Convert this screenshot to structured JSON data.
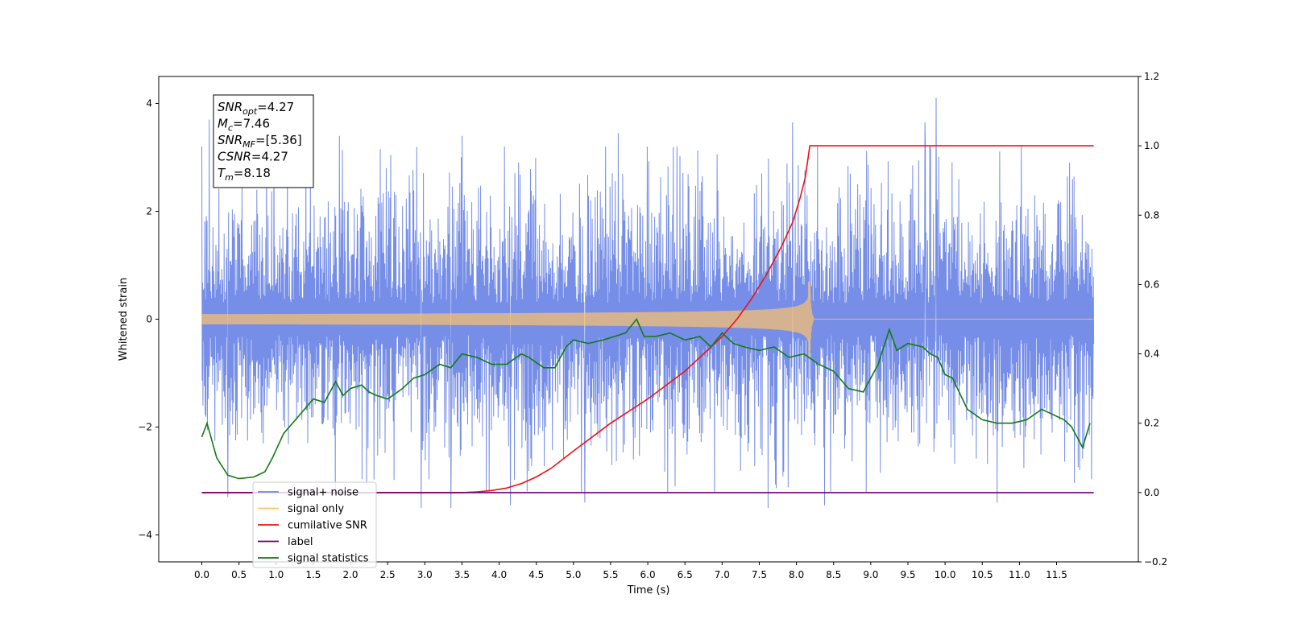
{
  "chart_data": {
    "type": "line",
    "title": "",
    "xlabel": "Time (s)",
    "ylabel": "Whitened strain",
    "y2label": "",
    "xlim": [
      -0.58,
      12.6
    ],
    "ylim": [
      -4.5,
      4.5
    ],
    "y2lim": [
      -0.2,
      1.2
    ],
    "xticks": [
      0.0,
      0.5,
      1.0,
      1.5,
      2.0,
      2.5,
      3.0,
      3.5,
      4.0,
      4.5,
      5.0,
      5.5,
      6.0,
      6.5,
      7.0,
      7.5,
      8.0,
      8.5,
      9.0,
      9.5,
      10.0,
      10.5,
      11.0,
      11.5
    ],
    "xtick_labels": [
      "0.0",
      "0.5",
      "1.0",
      "1.5",
      "2.0",
      "2.5",
      "3.0",
      "3.5",
      "4.0",
      "4.5",
      "5.0",
      "5.5",
      "6.0",
      "6.5",
      "7.0",
      "7.5",
      "8.0",
      "8.5",
      "9.0",
      "9.5",
      "10.0",
      "10.5",
      "11.0",
      "11.5"
    ],
    "yticks": [
      -4,
      -2,
      0,
      2,
      4
    ],
    "ytick_labels": [
      "−4",
      "−2",
      "0",
      "2",
      "4"
    ],
    "y2ticks": [
      -0.2,
      0.0,
      0.2,
      0.4,
      0.6,
      0.8,
      1.0,
      1.2
    ],
    "y2tick_labels": [
      "−0.2",
      "0.0",
      "0.2",
      "0.4",
      "0.6",
      "0.8",
      "1.0",
      "1.2"
    ],
    "grid": false,
    "legend_placement": "lower-left",
    "info_box": {
      "lines": [
        {
          "base": "SNR",
          "sub": "opt",
          "rest": "=4.27"
        },
        {
          "base": "M",
          "sub": "c",
          "rest": "=7.46"
        },
        {
          "base": "SNR",
          "sub": "MF",
          "rest": "=[5.36]"
        },
        {
          "base": "CSNR",
          "sub": "",
          "rest": "=4.27"
        },
        {
          "base": "T",
          "sub": "m",
          "rest": "=8.18"
        }
      ]
    },
    "series": [
      {
        "name": "signal+ noise",
        "axis": "left",
        "color": "#6f88e6",
        "kind": "noise",
        "x_range": [
          0.0,
          12.0
        ],
        "envelope_typical": [
          -2.2,
          2.4
        ],
        "peaks": [
          {
            "x": 0.1,
            "y": 3.7
          },
          {
            "x": 0.35,
            "y": -3.3
          },
          {
            "x": 1.4,
            "y": 3.0
          },
          {
            "x": 1.85,
            "y": 3.4
          },
          {
            "x": 2.95,
            "y": -3.5
          },
          {
            "x": 3.35,
            "y": -3.5
          },
          {
            "x": 3.5,
            "y": 3.4
          },
          {
            "x": 4.15,
            "y": -3.45
          },
          {
            "x": 5.15,
            "y": -3.4
          },
          {
            "x": 5.6,
            "y": 3.45
          },
          {
            "x": 6.37,
            "y": -3.1
          },
          {
            "x": 7.62,
            "y": -3.5
          },
          {
            "x": 7.95,
            "y": 3.65
          },
          {
            "x": 8.38,
            "y": -3.45
          },
          {
            "x": 9.73,
            "y": 3.65
          },
          {
            "x": 9.88,
            "y": 4.1
          },
          {
            "x": 10.7,
            "y": -3.4
          }
        ]
      },
      {
        "name": "signal only",
        "axis": "left",
        "color": "#ffc36b",
        "kind": "chirp",
        "x_range": [
          0.0,
          12.0
        ],
        "merger_time": 8.18,
        "peak_amplitude": 0.7
      },
      {
        "name": "cumilative SNR",
        "axis": "right",
        "color": "#ee1111",
        "x": [
          0.0,
          3.5,
          3.7,
          3.9,
          4.1,
          4.3,
          4.5,
          4.7,
          5.0,
          5.5,
          6.0,
          6.5,
          6.8,
          7.0,
          7.2,
          7.4,
          7.6,
          7.8,
          7.95,
          8.05,
          8.12,
          8.18,
          12.0
        ],
        "values": [
          0.0,
          0.0,
          0.002,
          0.006,
          0.013,
          0.026,
          0.045,
          0.07,
          0.12,
          0.2,
          0.27,
          0.35,
          0.41,
          0.45,
          0.5,
          0.56,
          0.63,
          0.71,
          0.78,
          0.85,
          0.91,
          1.0,
          1.0
        ]
      },
      {
        "name": "label",
        "axis": "right",
        "color": "#6b006b",
        "x": [
          0.0,
          12.0
        ],
        "values": [
          0.0,
          0.0
        ]
      },
      {
        "name": "signal statistics",
        "axis": "right",
        "color": "#137a13",
        "x": [
          0.0,
          0.07,
          0.2,
          0.35,
          0.5,
          0.7,
          0.85,
          0.95,
          1.1,
          1.3,
          1.5,
          1.65,
          1.8,
          1.9,
          2.0,
          2.15,
          2.25,
          2.35,
          2.5,
          2.7,
          2.85,
          3.0,
          3.2,
          3.35,
          3.5,
          3.7,
          3.9,
          4.1,
          4.3,
          4.4,
          4.6,
          4.75,
          4.9,
          5.0,
          5.2,
          5.4,
          5.55,
          5.7,
          5.85,
          5.95,
          6.1,
          6.3,
          6.5,
          6.7,
          6.85,
          7.0,
          7.15,
          7.3,
          7.5,
          7.7,
          7.9,
          8.1,
          8.3,
          8.5,
          8.7,
          8.9,
          9.1,
          9.25,
          9.35,
          9.5,
          9.7,
          9.8,
          9.9,
          10.0,
          10.1,
          10.3,
          10.5,
          10.7,
          10.9,
          11.1,
          11.3,
          11.4,
          11.6,
          11.7,
          11.85,
          11.95
        ],
        "values": [
          0.16,
          0.2,
          0.1,
          0.05,
          0.04,
          0.045,
          0.06,
          0.1,
          0.17,
          0.22,
          0.27,
          0.26,
          0.32,
          0.28,
          0.3,
          0.31,
          0.29,
          0.28,
          0.27,
          0.3,
          0.33,
          0.34,
          0.37,
          0.36,
          0.4,
          0.39,
          0.37,
          0.37,
          0.4,
          0.39,
          0.36,
          0.36,
          0.42,
          0.44,
          0.43,
          0.44,
          0.45,
          0.46,
          0.5,
          0.45,
          0.45,
          0.46,
          0.44,
          0.45,
          0.42,
          0.46,
          0.43,
          0.42,
          0.41,
          0.42,
          0.39,
          0.4,
          0.37,
          0.35,
          0.3,
          0.29,
          0.37,
          0.47,
          0.41,
          0.43,
          0.42,
          0.4,
          0.39,
          0.34,
          0.33,
          0.24,
          0.21,
          0.2,
          0.2,
          0.21,
          0.24,
          0.23,
          0.21,
          0.19,
          0.13,
          0.2
        ]
      }
    ]
  }
}
